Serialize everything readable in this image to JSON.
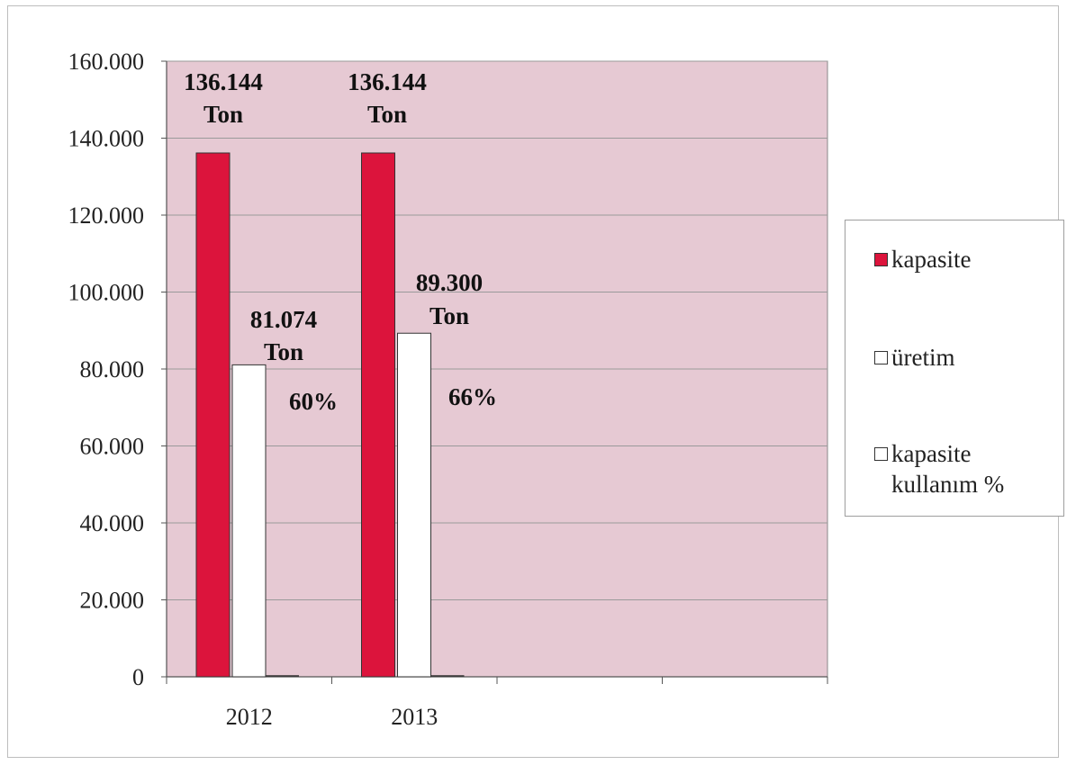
{
  "chart_data": {
    "type": "bar",
    "categories": [
      "2012",
      "2013"
    ],
    "series": [
      {
        "name": "kapasite",
        "values": [
          136144,
          136144
        ],
        "color": "#dc143c"
      },
      {
        "name": "üretim",
        "values": [
          81074,
          89300
        ],
        "color": "#ffffff"
      },
      {
        "name": "kapasite kullanım %",
        "values": [
          60,
          66
        ],
        "color": "#ffffff"
      }
    ],
    "ylim": [
      0,
      160000
    ],
    "yticks": [
      0,
      20000,
      40000,
      60000,
      80000,
      100000,
      120000,
      140000,
      160000
    ],
    "ytick_labels": [
      "0",
      "20.000",
      "40.000",
      "60.000",
      "80.000",
      "100.000",
      "120.000",
      "140.000",
      "160.000"
    ],
    "data_labels": {
      "kapasite": [
        [
          "136.144",
          "Ton"
        ],
        [
          "136.144",
          "Ton"
        ]
      ],
      "üretim": [
        [
          "81.074",
          "Ton"
        ],
        [
          "89.300",
          "Ton"
        ]
      ],
      "kapasite kullanım %": [
        "60%",
        "66%"
      ]
    },
    "legend_position": "right",
    "grid": true,
    "plot_background": "#e6c9d3"
  },
  "legend": {
    "items": [
      {
        "label": "kapasite"
      },
      {
        "label": "üretim"
      },
      {
        "label": "kapasite kullanım %"
      }
    ],
    "last_item_lines": [
      "kapasite",
      "kullanım %"
    ]
  }
}
